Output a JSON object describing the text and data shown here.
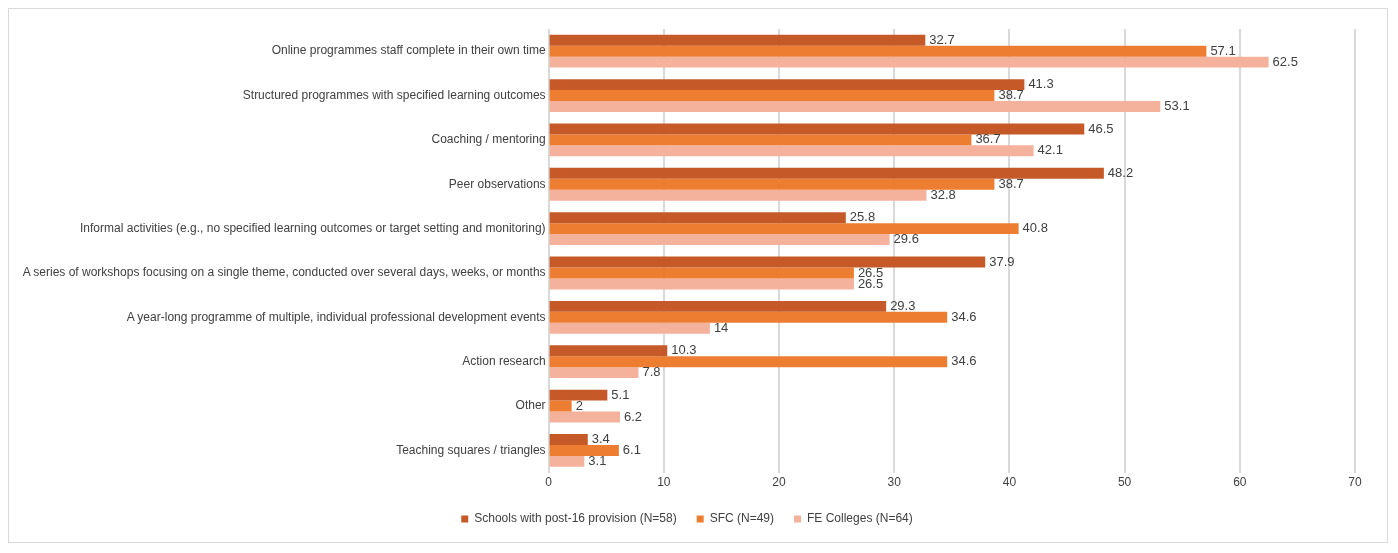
{
  "chart_data": {
    "type": "bar",
    "orientation": "horizontal",
    "categories": [
      "Online programmes staff complete in their own time",
      "Structured programmes with specified learning outcomes",
      "Coaching / mentoring",
      "Peer observations",
      "Informal activities (e.g., no specified learning outcomes or target setting and monitoring)",
      "A series of workshops focusing on a single theme, conducted over several days, weeks, or months",
      "A year-long programme of multiple, individual professional development events",
      "Action research",
      "Other",
      "Teaching squares / triangles"
    ],
    "series": [
      {
        "name": "Schools with post-16 provision (N=58)",
        "color": "#c55a28",
        "values": [
          32.7,
          41.3,
          46.5,
          48.2,
          25.8,
          37.9,
          29.3,
          10.3,
          5.1,
          3.4
        ]
      },
      {
        "name": "SFC (N=49)",
        "color": "#ed7d31",
        "values": [
          57.1,
          38.7,
          36.7,
          38.7,
          40.8,
          26.5,
          34.6,
          34.6,
          2,
          6.1
        ]
      },
      {
        "name": "FE Colleges (N=64)",
        "color": "#f4b19c",
        "values": [
          62.5,
          53.1,
          42.1,
          32.8,
          29.6,
          26.5,
          14,
          7.8,
          6.2,
          3.1
        ]
      }
    ],
    "xlim": [
      0,
      70
    ],
    "xticks": [
      0,
      10,
      20,
      30,
      40,
      50,
      60,
      70
    ],
    "grid": "x",
    "legend": "bottom",
    "data_labels": true
  }
}
